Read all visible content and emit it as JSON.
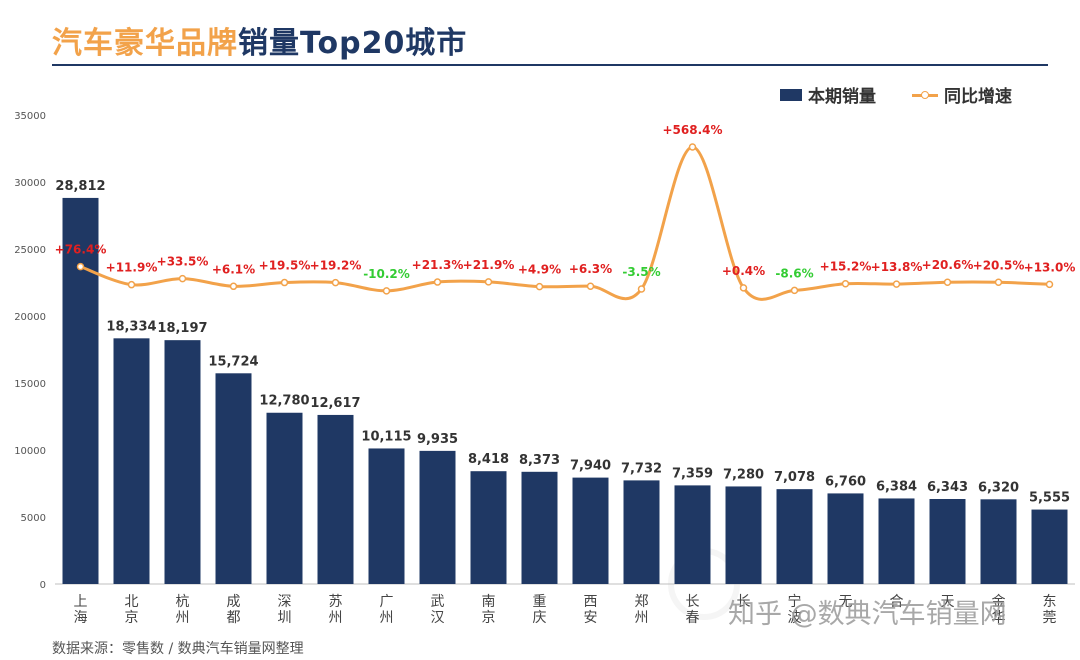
{
  "title": {
    "part1": "汽车豪华品牌",
    "part2": "销量Top20城市"
  },
  "legend": {
    "bar_label": "本期销量",
    "line_label": "同比增速"
  },
  "source": "数据来源：零售数 / 数典汽车销量网整理",
  "watermark": "知乎 @数典汽车销量网",
  "colors": {
    "bar": "#1f3864",
    "line": "#f2a24a",
    "positive": "#e02020",
    "negative": "#33cc33",
    "title_orange": "#f2a24a",
    "title_navy": "#1f3864"
  },
  "chart_data": {
    "type": "bar",
    "title": "汽车豪华品牌销量Top20城市",
    "xlabel": "",
    "ylabel": "",
    "ylim": [
      0,
      35000
    ],
    "yticks": [
      "0",
      "5000",
      "10000",
      "15000",
      "20000",
      "25000",
      "30000",
      "35000"
    ],
    "categories": [
      "上海",
      "北京",
      "杭州",
      "成都",
      "深圳",
      "苏州",
      "广州",
      "武汉",
      "南京",
      "重庆",
      "西安",
      "郑州",
      "长春",
      "长沙",
      "宁波",
      "无锡",
      "合肥",
      "天津",
      "金华",
      "东莞"
    ],
    "category_labels_visible": [
      "上海",
      "北京",
      "杭州",
      "成都",
      "深圳",
      "苏州",
      "广州",
      "武汉",
      "南京",
      "重庆",
      "西安",
      "郑州",
      "长春",
      "长",
      "宁波",
      "无",
      "合",
      "天",
      "金华",
      "东莞"
    ],
    "series": [
      {
        "name": "本期销量",
        "type": "bar",
        "values": [
          28812,
          18334,
          18197,
          15724,
          12780,
          12617,
          10115,
          9935,
          8418,
          8373,
          7940,
          7732,
          7359,
          7280,
          7078,
          6760,
          6384,
          6343,
          6320,
          5555
        ],
        "labels": [
          "28,812",
          "18,334",
          "18,197",
          "15,724",
          "12,780",
          "12,617",
          "10,115",
          "9,935",
          "8,418",
          "8,373",
          "7,940",
          "7,732",
          "7,359",
          "7,280",
          "7,078",
          "6,760",
          "6,384",
          "6,343",
          "6,320",
          "5,555"
        ]
      },
      {
        "name": "同比增速",
        "type": "line",
        "values": [
          76.4,
          11.9,
          33.5,
          6.1,
          19.5,
          19.2,
          -10.2,
          21.3,
          21.9,
          4.9,
          6.3,
          -3.5,
          568.4,
          0.4,
          -8.6,
          15.2,
          13.8,
          20.6,
          20.5,
          13.0
        ],
        "labels": [
          "+76.4%",
          "+11.9%",
          "+33.5%",
          "+6.1%",
          "+19.5%",
          "+19.2%",
          "-10.2%",
          "+21.3%",
          "+21.9%",
          "+4.9%",
          "+6.3%",
          "-3.5%",
          "+568.4%",
          "+0.4%",
          "-8.6%",
          "+15.2%",
          "+13.8%",
          "+20.6%",
          "+20.5%",
          "+13.0%"
        ]
      }
    ]
  }
}
